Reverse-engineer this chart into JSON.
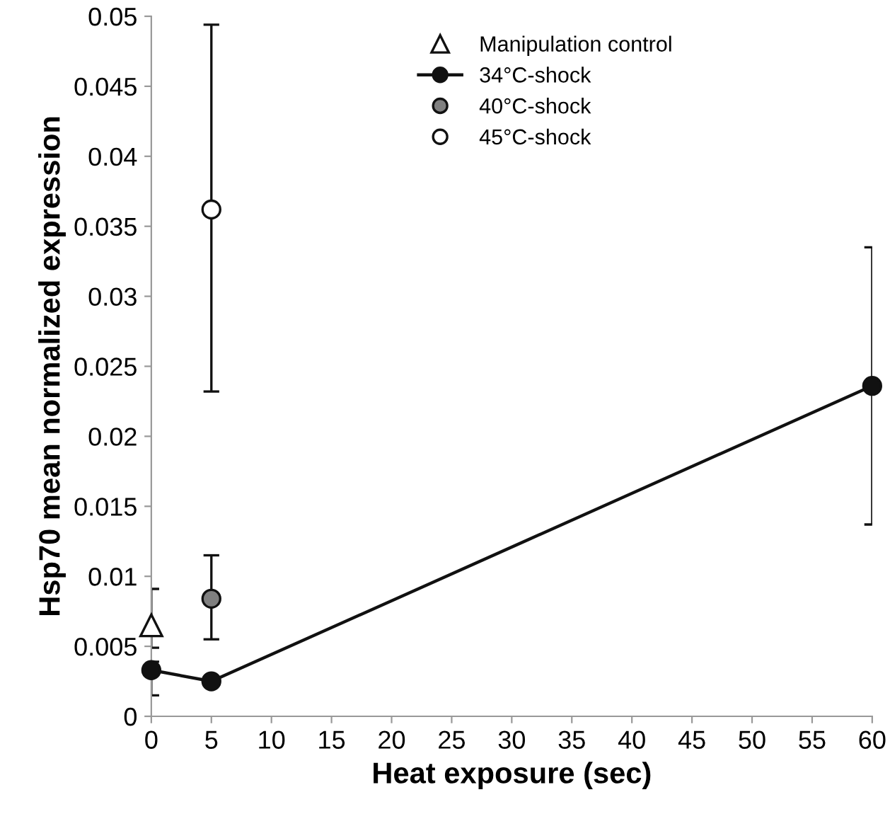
{
  "chart_data": {
    "type": "scatter",
    "xlabel": "Heat exposure (sec)",
    "ylabel": "Hsp70 mean normalized expression",
    "xlim": [
      0,
      60
    ],
    "xticks": [
      0,
      5,
      10,
      15,
      20,
      25,
      30,
      35,
      40,
      45,
      50,
      55,
      60
    ],
    "ylim": [
      0,
      0.05
    ],
    "yticks": [
      0,
      0.005,
      0.01,
      0.015,
      0.02,
      0.025,
      0.03,
      0.035,
      0.04,
      0.045,
      0.05
    ],
    "grid": false,
    "legend": "top right",
    "series": [
      {
        "name": "Manipulation control",
        "marker": "triangle",
        "color": "#ffffff",
        "x": [
          0
        ],
        "values": [
          0.0065
        ],
        "errors": [
          [
            0.0049,
            0.0091
          ]
        ]
      },
      {
        "name": "34°C-shock",
        "type": "line",
        "marker": "circle",
        "color": "#111111",
        "x": [
          0,
          5,
          60
        ],
        "values": [
          0.0033,
          0.0025,
          0.0236
        ],
        "errors": [
          [
            0.0015,
            0.0039
          ],
          null,
          [
            0.0137,
            0.0335
          ]
        ]
      },
      {
        "name": "40°C-shock",
        "marker": "circle",
        "color": "#808080",
        "x": [
          5
        ],
        "values": [
          0.0084
        ],
        "errors": [
          [
            0.0055,
            0.0115
          ]
        ]
      },
      {
        "name": "45°C-shock",
        "marker": "circle",
        "color": "#ffffff",
        "x": [
          5
        ],
        "values": [
          0.0362
        ],
        "errors": [
          [
            0.0232,
            0.0494
          ]
        ]
      }
    ]
  }
}
